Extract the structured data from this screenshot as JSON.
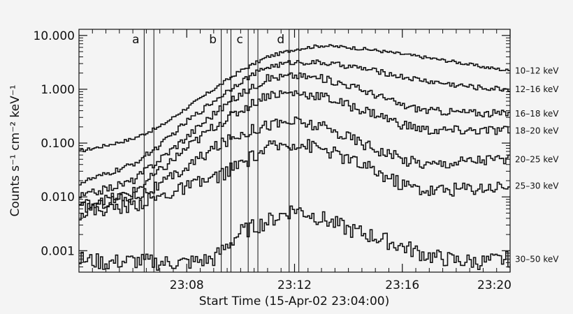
{
  "chart_data": {
    "type": "line",
    "xlabel": "Start Time (15-Apr-02 23:04:00)",
    "ylabel": "Counts s⁻¹ cm⁻² keV⁻¹",
    "yscale": "log",
    "ylim": [
      0.0004,
      13
    ],
    "xlim_minutes": [
      0,
      16
    ],
    "x_ticks": [
      {
        "t": 4,
        "label": "23:08"
      },
      {
        "t": 8,
        "label": "23:12"
      },
      {
        "t": 12,
        "label": "23:16"
      },
      {
        "t": 16,
        "label": "23:20"
      }
    ],
    "y_ticks": [
      {
        "v": 10,
        "label": "10.000"
      },
      {
        "v": 1,
        "label": "1.000"
      },
      {
        "v": 0.1,
        "label": "0.100"
      },
      {
        "v": 0.01,
        "label": "0.010"
      },
      {
        "v": 0.001,
        "label": "0.001"
      }
    ],
    "intervals": [
      {
        "label": "a",
        "start": 2.42,
        "end": 2.78
      },
      {
        "label": "b",
        "start": 5.28,
        "end": 5.64
      },
      {
        "label": "c",
        "start": 6.28,
        "end": 6.64
      },
      {
        "label": "d",
        "start": 7.8,
        "end": 8.16
      }
    ],
    "series": [
      {
        "name": "10-12 keV",
        "t": [
          0,
          1,
          2,
          3,
          4,
          5,
          6,
          7,
          8,
          9,
          10,
          11,
          12,
          13,
          14,
          15,
          16
        ],
        "values": [
          0.07,
          0.09,
          0.12,
          0.2,
          0.45,
          1.0,
          2.2,
          4.0,
          5.5,
          6.5,
          6.0,
          5.3,
          4.5,
          3.8,
          3.2,
          2.6,
          2.2
        ]
      },
      {
        "name": "12-16 keV",
        "t": [
          0,
          1,
          2,
          3,
          4,
          5,
          6,
          7,
          8,
          9,
          10,
          11,
          12,
          13,
          14,
          15,
          16
        ],
        "values": [
          0.018,
          0.026,
          0.04,
          0.09,
          0.25,
          0.6,
          1.4,
          2.6,
          3.2,
          3.1,
          2.7,
          2.2,
          1.7,
          1.4,
          1.2,
          1.05,
          1.0
        ]
      },
      {
        "name": "16-18 keV",
        "t": [
          0,
          1,
          2,
          3,
          4,
          5,
          6,
          7,
          8,
          9,
          10,
          11,
          12,
          13,
          14,
          15,
          16
        ],
        "values": [
          0.01,
          0.014,
          0.02,
          0.05,
          0.13,
          0.35,
          0.8,
          1.6,
          1.8,
          1.6,
          1.2,
          0.8,
          0.5,
          0.4,
          0.38,
          0.36,
          0.35
        ]
      },
      {
        "name": "18-20 keV",
        "t": [
          0,
          1,
          2,
          3,
          4,
          5,
          6,
          7,
          8,
          9,
          10,
          11,
          12,
          13,
          14,
          15,
          16
        ],
        "values": [
          0.007,
          0.009,
          0.012,
          0.03,
          0.08,
          0.2,
          0.4,
          0.8,
          0.85,
          0.75,
          0.5,
          0.35,
          0.22,
          0.17,
          0.17,
          0.17,
          0.17
        ]
      },
      {
        "name": "20-25 keV",
        "t": [
          0,
          1,
          2,
          3,
          4,
          5,
          6,
          7,
          8,
          9,
          10,
          11,
          12,
          13,
          14,
          15,
          16
        ],
        "values": [
          0.006,
          0.008,
          0.01,
          0.016,
          0.035,
          0.08,
          0.15,
          0.22,
          0.25,
          0.2,
          0.13,
          0.08,
          0.05,
          0.04,
          0.045,
          0.05,
          0.05
        ]
      },
      {
        "name": "25-30 keV",
        "t": [
          0,
          1,
          2,
          3,
          4,
          5,
          6,
          7,
          8,
          9,
          10,
          11,
          12,
          13,
          14,
          15,
          16
        ],
        "values": [
          0.005,
          0.006,
          0.007,
          0.01,
          0.015,
          0.022,
          0.04,
          0.08,
          0.1,
          0.08,
          0.05,
          0.03,
          0.017,
          0.013,
          0.014,
          0.015,
          0.016
        ]
      },
      {
        "name": "30-50 keV",
        "t": [
          0,
          1,
          2,
          3,
          4,
          5,
          6,
          7,
          8,
          9,
          10,
          11,
          12,
          13,
          14,
          15,
          16
        ],
        "values": [
          0.0007,
          0.0006,
          0.00065,
          0.0006,
          0.0006,
          0.0007,
          0.0022,
          0.0035,
          0.006,
          0.004,
          0.0025,
          0.0018,
          0.0012,
          0.0008,
          0.00065,
          0.00062,
          0.0007
        ]
      }
    ],
    "band_labels": [
      "10–12 keV",
      "12–16 keV",
      "16–18 keV",
      "18–20 keV",
      "20–25 keV",
      "25–30 keV",
      "30–50 keV"
    ],
    "grid": false,
    "legend": "right, inline band labels",
    "colors": {
      "line": "#111111",
      "background": "#f4f4f4"
    }
  }
}
